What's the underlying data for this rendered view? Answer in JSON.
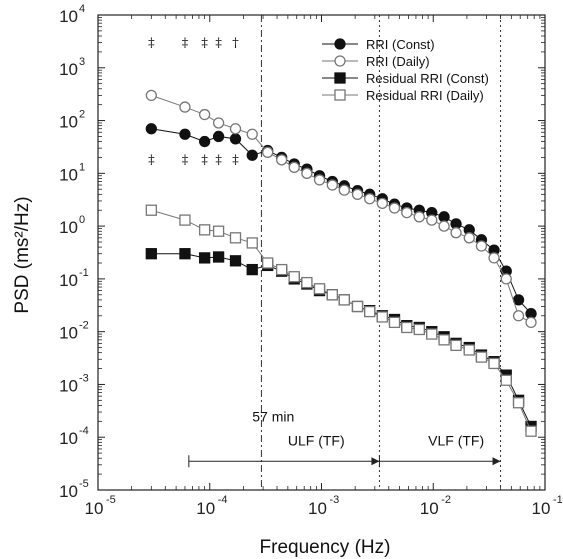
{
  "chart_data": {
    "type": "line",
    "xlabel": "Frequency (Hz)",
    "ylabel": "PSD (ms²/Hz)",
    "xscale": "log",
    "yscale": "log",
    "xlim": [
      1e-05,
      0.1
    ],
    "ylim": [
      1e-05,
      10000
    ],
    "x_ticks": [
      {
        "value": 1e-05,
        "base": "10",
        "exp": "-5"
      },
      {
        "value": 0.0001,
        "base": "10",
        "exp": "-4"
      },
      {
        "value": 0.001,
        "base": "10",
        "exp": "-3"
      },
      {
        "value": 0.01,
        "base": "10",
        "exp": "-2"
      },
      {
        "value": 0.1,
        "base": "10",
        "exp": "-1"
      }
    ],
    "y_ticks": [
      {
        "value": 1e-05,
        "base": "10",
        "exp": "-5"
      },
      {
        "value": 0.0001,
        "base": "10",
        "exp": "-4"
      },
      {
        "value": 0.001,
        "base": "10",
        "exp": "-3"
      },
      {
        "value": 0.01,
        "base": "10",
        "exp": "-2"
      },
      {
        "value": 0.1,
        "base": "10",
        "exp": "-1"
      },
      {
        "value": 1,
        "base": "10",
        "exp": "0"
      },
      {
        "value": 10,
        "base": "10",
        "exp": "1"
      },
      {
        "value": 100,
        "base": "10",
        "exp": "2"
      },
      {
        "value": 1000,
        "base": "10",
        "exp": "3"
      },
      {
        "value": 10000,
        "base": "10",
        "exp": "4"
      }
    ],
    "legend_position": "top-right",
    "x": [
      3e-05,
      6e-05,
      9e-05,
      0.00012,
      0.00017,
      0.00024,
      0.00033,
      0.00044,
      0.00057,
      0.00074,
      0.00096,
      0.00125,
      0.0016,
      0.0021,
      0.0027,
      0.0035,
      0.0045,
      0.0058,
      0.0075,
      0.0097,
      0.0125,
      0.016,
      0.021,
      0.027,
      0.035,
      0.045,
      0.058,
      0.075
    ],
    "series": [
      {
        "name": "RRI (Const)",
        "marker": "filled-circle",
        "color": "#111111",
        "values": [
          70,
          55,
          40,
          50,
          45,
          22,
          27,
          20,
          15,
          12,
          9.0,
          7.0,
          5.8,
          4.7,
          4.0,
          3.3,
          2.6,
          2.2,
          2.0,
          1.8,
          1.5,
          1.1,
          0.85,
          0.55,
          0.35,
          0.14,
          0.04,
          0.022
        ]
      },
      {
        "name": "RRI (Daily)",
        "marker": "open-circle",
        "color": "#777777",
        "values": [
          300,
          180,
          130,
          90,
          70,
          55,
          25,
          18,
          13,
          10,
          7.5,
          6.0,
          4.8,
          4.0,
          3.3,
          2.7,
          2.2,
          1.8,
          1.5,
          1.3,
          1.0,
          0.75,
          0.6,
          0.42,
          0.25,
          0.1,
          0.02,
          0.015
        ]
      },
      {
        "name": "Residual RRI (Const)",
        "marker": "filled-square",
        "color": "#111111",
        "values": [
          0.3,
          0.3,
          0.25,
          0.26,
          0.22,
          0.15,
          0.18,
          0.14,
          0.1,
          0.08,
          0.06,
          0.05,
          0.04,
          0.03,
          0.025,
          0.02,
          0.017,
          0.013,
          0.012,
          0.01,
          0.008,
          0.006,
          0.005,
          0.0036,
          0.0027,
          0.0015,
          0.0005,
          0.00016
        ]
      },
      {
        "name": "Residual RRI (Daily)",
        "marker": "open-square",
        "color": "#777777",
        "values": [
          2.0,
          1.3,
          0.85,
          0.8,
          0.6,
          0.48,
          0.2,
          0.15,
          0.11,
          0.085,
          0.065,
          0.05,
          0.04,
          0.03,
          0.024,
          0.019,
          0.015,
          0.012,
          0.011,
          0.009,
          0.007,
          0.0055,
          0.0045,
          0.0033,
          0.0025,
          0.0012,
          0.00045,
          0.00013
        ]
      }
    ],
    "vertical_lines": [
      {
        "x": 0.00029,
        "style": "dash-dot"
      },
      {
        "x": 0.0033,
        "style": "dotted"
      },
      {
        "x": 0.04,
        "style": "dotted"
      }
    ],
    "annotations": [
      {
        "text": "57 min",
        "x": 0.00024,
        "y": 0.0002
      },
      {
        "text": "ULF (TF)",
        "x": 0.0005,
        "y": 7e-05
      },
      {
        "text": "VLF (TF)",
        "x": 0.009,
        "y": 7e-05
      }
    ],
    "significance_marks": [
      {
        "symbol": "‡",
        "x": 3e-05,
        "y": 2500
      },
      {
        "symbol": "‡",
        "x": 6e-05,
        "y": 2500
      },
      {
        "symbol": "‡",
        "x": 9e-05,
        "y": 2500
      },
      {
        "symbol": "‡",
        "x": 0.00012,
        "y": 2500
      },
      {
        "symbol": "†",
        "x": 0.00017,
        "y": 2500
      },
      {
        "symbol": "‡",
        "x": 3e-05,
        "y": 15
      },
      {
        "symbol": "‡",
        "x": 6e-05,
        "y": 15
      },
      {
        "symbol": "‡",
        "x": 9e-05,
        "y": 15
      },
      {
        "symbol": "‡",
        "x": 0.00012,
        "y": 15
      },
      {
        "symbol": "‡",
        "x": 0.00017,
        "y": 15
      }
    ],
    "range_arrows": [
      {
        "from": 6.5e-05,
        "to": 0.0033,
        "y": 3.5e-05
      },
      {
        "from": 0.0033,
        "to": 0.04,
        "y": 3.5e-05
      }
    ]
  }
}
